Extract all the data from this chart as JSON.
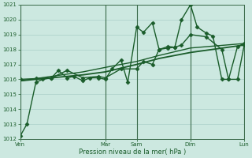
{
  "xlabel": "Pression niveau de la mer( hPa )",
  "bg_color": "#cce8e0",
  "grid_color": "#aacfc8",
  "line_color": "#1a5c2a",
  "vline_color": "#3a6a4a",
  "ylim": [
    1012,
    1021
  ],
  "yticks": [
    1012,
    1013,
    1014,
    1015,
    1016,
    1017,
    1018,
    1019,
    1020,
    1021
  ],
  "xtick_labels": [
    "Ven",
    "Mar",
    "Sam",
    "Dim",
    "Lun"
  ],
  "xtick_positions": [
    0,
    0.38,
    0.52,
    0.76,
    1.0
  ],
  "vline_positions": [
    0,
    0.38,
    0.52,
    0.76,
    1.0
  ],
  "lines": [
    {
      "x": [
        0.0,
        0.03,
        0.07,
        0.1,
        0.14,
        0.17,
        0.21,
        0.24,
        0.28,
        0.31,
        0.35,
        0.38,
        0.41,
        0.45,
        0.48,
        0.52,
        0.55,
        0.59,
        0.62,
        0.66,
        0.69,
        0.72,
        0.76,
        0.79,
        0.83,
        0.86,
        0.9,
        0.93,
        0.97,
        1.0
      ],
      "y": [
        1012.2,
        1013.0,
        1015.8,
        1016.0,
        1016.1,
        1016.6,
        1016.1,
        1016.2,
        1015.9,
        1016.1,
        1016.1,
        1016.0,
        1016.7,
        1017.3,
        1015.8,
        1019.5,
        1019.15,
        1019.8,
        1018.0,
        1018.2,
        1018.15,
        1020.0,
        1021.0,
        1019.5,
        1019.1,
        1018.9,
        1016.0,
        1016.0,
        1018.2,
        1018.4
      ],
      "marker": "D",
      "markersize": 2.5,
      "linewidth": 1.0,
      "linestyle": "-",
      "zorder": 5
    },
    {
      "x": [
        0.0,
        0.14,
        0.28,
        0.38,
        0.52,
        0.62,
        0.76,
        0.88,
        1.0
      ],
      "y": [
        1015.9,
        1016.1,
        1016.3,
        1016.5,
        1017.0,
        1017.4,
        1017.8,
        1018.05,
        1018.3
      ],
      "marker": null,
      "markersize": 0,
      "linewidth": 1.3,
      "linestyle": "-",
      "zorder": 4
    },
    {
      "x": [
        0.0,
        0.14,
        0.28,
        0.38,
        0.52,
        0.62,
        0.76,
        0.88,
        1.0
      ],
      "y": [
        1015.9,
        1016.2,
        1016.5,
        1016.8,
        1017.2,
        1017.6,
        1018.1,
        1018.25,
        1018.4
      ],
      "marker": null,
      "markersize": 0,
      "linewidth": 1.0,
      "linestyle": "-",
      "zorder": 4
    },
    {
      "x": [
        0.0,
        0.07,
        0.14,
        0.21,
        0.28,
        0.35,
        0.38,
        0.45,
        0.52,
        0.55,
        0.59,
        0.62,
        0.66,
        0.69,
        0.72,
        0.76,
        0.83,
        0.9,
        0.93,
        0.97,
        1.0
      ],
      "y": [
        1016.0,
        1016.05,
        1016.1,
        1016.6,
        1016.1,
        1016.2,
        1016.1,
        1016.7,
        1016.7,
        1017.2,
        1017.0,
        1018.0,
        1018.1,
        1018.15,
        1018.3,
        1019.0,
        1018.85,
        1018.0,
        1016.0,
        1016.0,
        1018.3
      ],
      "marker": "D",
      "markersize": 2.5,
      "linewidth": 1.0,
      "linestyle": "-",
      "zorder": 5
    }
  ]
}
